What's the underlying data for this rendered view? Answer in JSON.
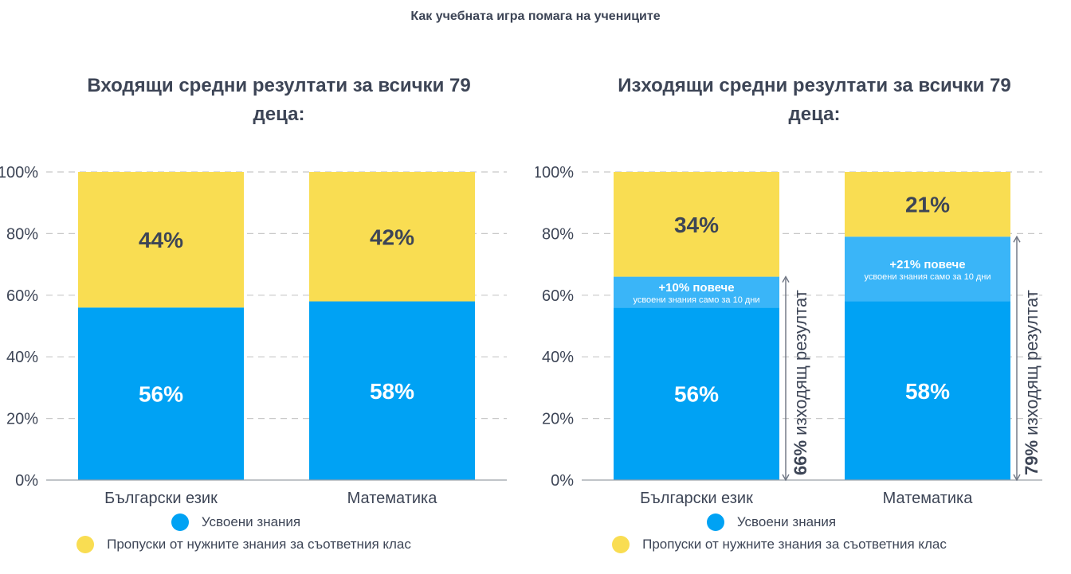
{
  "page_title": "Как учебната игра помага на учениците",
  "colors": {
    "known": "#00a2f4",
    "gap": "#f9dd52",
    "improvement": "#3ab5f8",
    "text": "#3d4556",
    "grid": "#c8c8c8",
    "arrow": "#6b7280"
  },
  "legend": {
    "known_label": "Усвоени знания",
    "gap_label": "Пропуски от нужните знания за съответния клас"
  },
  "chart_data": [
    {
      "type": "bar",
      "stacked": true,
      "title": "Входящи средни резултати за всички 79 деца:",
      "categories": [
        "Български език",
        "Математика"
      ],
      "ylim": [
        0,
        100
      ],
      "yticks": [
        "0%",
        "20%",
        "40%",
        "60%",
        "80%",
        "100%"
      ],
      "grid": true,
      "series": [
        {
          "key": "known",
          "name": "Усвоени знания",
          "values": [
            56,
            58
          ],
          "labels": [
            "56%",
            "58%"
          ]
        },
        {
          "key": "gap",
          "name": "Пропуски от нужните знания за съответния клас",
          "values": [
            44,
            42
          ],
          "labels": [
            "44%",
            "42%"
          ]
        }
      ]
    },
    {
      "type": "bar",
      "stacked": true,
      "title": "Изходящи средни резултати за всички 79 деца:",
      "categories": [
        "Български език",
        "Математика"
      ],
      "ylim": [
        0,
        100
      ],
      "yticks": [
        "0%",
        "20%",
        "40%",
        "60%",
        "80%",
        "100%"
      ],
      "grid": true,
      "series": [
        {
          "key": "known",
          "name": "Усвоени знания",
          "values": [
            56,
            58
          ],
          "labels": [
            "56%",
            "58%"
          ]
        },
        {
          "key": "improvement",
          "values": [
            10,
            21
          ],
          "labels": [
            "+10% повече",
            "+21% повече"
          ],
          "sublabels": [
            "усвоени знания само за 10 дни",
            "усвоени знания само за 10 дни"
          ]
        },
        {
          "key": "gap",
          "name": "Пропуски от нужните знания за съответния клас",
          "values": [
            34,
            21
          ],
          "labels": [
            "34%",
            "21%"
          ]
        }
      ],
      "annotations": [
        {
          "value": 66,
          "bold": "66%",
          "text": " изходящ резултат"
        },
        {
          "value": 79,
          "bold": "79%",
          "text": " изходящ резултат"
        }
      ]
    }
  ]
}
